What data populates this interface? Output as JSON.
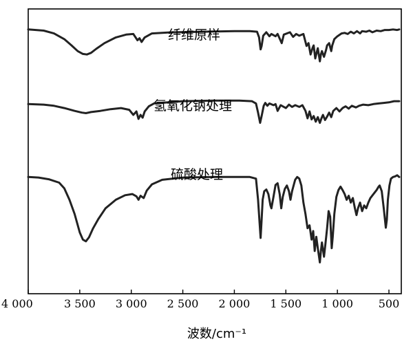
{
  "chart_data": {
    "type": "line",
    "title": "",
    "xlabel": "波数/cm⁻¹",
    "ylabel": "",
    "xlim": [
      4000,
      380
    ],
    "x_reversed": true,
    "xticks": [
      4000,
      3500,
      3000,
      2500,
      2000,
      1500,
      1000,
      500
    ],
    "xtick_labels": [
      "4 000",
      "3 500",
      "3 000",
      "2 500",
      "2 000",
      "1 500",
      "1 000",
      "500"
    ],
    "ylim": [
      0,
      1
    ],
    "series": [
      {
        "name": "纤维原样",
        "points": [
          [
            4000,
            0.928
          ],
          [
            3850,
            0.924
          ],
          [
            3750,
            0.914
          ],
          [
            3650,
            0.894
          ],
          [
            3580,
            0.872
          ],
          [
            3520,
            0.852
          ],
          [
            3470,
            0.842
          ],
          [
            3430,
            0.84
          ],
          [
            3390,
            0.846
          ],
          [
            3340,
            0.86
          ],
          [
            3260,
            0.88
          ],
          [
            3150,
            0.9
          ],
          [
            3050,
            0.91
          ],
          [
            2980,
            0.912
          ],
          [
            2940,
            0.89
          ],
          [
            2920,
            0.897
          ],
          [
            2900,
            0.884
          ],
          [
            2870,
            0.9
          ],
          [
            2800,
            0.914
          ],
          [
            2600,
            0.918
          ],
          [
            2300,
            0.92
          ],
          [
            2000,
            0.922
          ],
          [
            1850,
            0.922
          ],
          [
            1780,
            0.92
          ],
          [
            1760,
            0.9
          ],
          [
            1745,
            0.858
          ],
          [
            1735,
            0.87
          ],
          [
            1720,
            0.906
          ],
          [
            1690,
            0.918
          ],
          [
            1660,
            0.904
          ],
          [
            1640,
            0.912
          ],
          [
            1600,
            0.904
          ],
          [
            1580,
            0.912
          ],
          [
            1540,
            0.88
          ],
          [
            1520,
            0.91
          ],
          [
            1460,
            0.918
          ],
          [
            1430,
            0.902
          ],
          [
            1400,
            0.912
          ],
          [
            1370,
            0.906
          ],
          [
            1330,
            0.912
          ],
          [
            1300,
            0.87
          ],
          [
            1280,
            0.88
          ],
          [
            1260,
            0.84
          ],
          [
            1240,
            0.864
          ],
          [
            1230,
            0.872
          ],
          [
            1215,
            0.826
          ],
          [
            1200,
            0.848
          ],
          [
            1190,
            0.862
          ],
          [
            1170,
            0.816
          ],
          [
            1160,
            0.84
          ],
          [
            1150,
            0.852
          ],
          [
            1130,
            0.832
          ],
          [
            1110,
            0.856
          ],
          [
            1100,
            0.872
          ],
          [
            1080,
            0.88
          ],
          [
            1060,
            0.852
          ],
          [
            1050,
            0.872
          ],
          [
            1030,
            0.894
          ],
          [
            1000,
            0.904
          ],
          [
            960,
            0.914
          ],
          [
            930,
            0.916
          ],
          [
            900,
            0.912
          ],
          [
            870,
            0.92
          ],
          [
            840,
            0.914
          ],
          [
            810,
            0.922
          ],
          [
            780,
            0.914
          ],
          [
            760,
            0.922
          ],
          [
            720,
            0.92
          ],
          [
            690,
            0.924
          ],
          [
            660,
            0.918
          ],
          [
            620,
            0.924
          ],
          [
            580,
            0.922
          ],
          [
            540,
            0.926
          ],
          [
            500,
            0.926
          ],
          [
            460,
            0.928
          ],
          [
            420,
            0.926
          ],
          [
            400,
            0.928
          ]
        ]
      },
      {
        "name": "氢氧化钠处理",
        "points": [
          [
            4000,
            0.666
          ],
          [
            3850,
            0.664
          ],
          [
            3750,
            0.66
          ],
          [
            3650,
            0.652
          ],
          [
            3550,
            0.642
          ],
          [
            3480,
            0.636
          ],
          [
            3440,
            0.634
          ],
          [
            3390,
            0.638
          ],
          [
            3300,
            0.642
          ],
          [
            3200,
            0.648
          ],
          [
            3100,
            0.652
          ],
          [
            3020,
            0.646
          ],
          [
            2980,
            0.628
          ],
          [
            2950,
            0.64
          ],
          [
            2930,
            0.614
          ],
          [
            2910,
            0.628
          ],
          [
            2890,
            0.618
          ],
          [
            2870,
            0.64
          ],
          [
            2830,
            0.658
          ],
          [
            2780,
            0.668
          ],
          [
            2500,
            0.676
          ],
          [
            2200,
            0.678
          ],
          [
            1950,
            0.678
          ],
          [
            1830,
            0.676
          ],
          [
            1790,
            0.668
          ],
          [
            1770,
            0.636
          ],
          [
            1750,
            0.6
          ],
          [
            1735,
            0.624
          ],
          [
            1715,
            0.66
          ],
          [
            1700,
            0.67
          ],
          [
            1680,
            0.66
          ],
          [
            1660,
            0.668
          ],
          [
            1620,
            0.662
          ],
          [
            1600,
            0.666
          ],
          [
            1580,
            0.642
          ],
          [
            1550,
            0.662
          ],
          [
            1500,
            0.652
          ],
          [
            1470,
            0.664
          ],
          [
            1440,
            0.656
          ],
          [
            1410,
            0.662
          ],
          [
            1370,
            0.656
          ],
          [
            1340,
            0.662
          ],
          [
            1310,
            0.642
          ],
          [
            1290,
            0.616
          ],
          [
            1270,
            0.64
          ],
          [
            1250,
            0.612
          ],
          [
            1230,
            0.624
          ],
          [
            1210,
            0.604
          ],
          [
            1190,
            0.62
          ],
          [
            1170,
            0.6
          ],
          [
            1155,
            0.616
          ],
          [
            1140,
            0.628
          ],
          [
            1120,
            0.61
          ],
          [
            1100,
            0.622
          ],
          [
            1080,
            0.636
          ],
          [
            1060,
            0.62
          ],
          [
            1040,
            0.642
          ],
          [
            1010,
            0.652
          ],
          [
            980,
            0.64
          ],
          [
            950,
            0.652
          ],
          [
            920,
            0.658
          ],
          [
            890,
            0.65
          ],
          [
            860,
            0.66
          ],
          [
            820,
            0.654
          ],
          [
            790,
            0.66
          ],
          [
            750,
            0.664
          ],
          [
            700,
            0.662
          ],
          [
            650,
            0.666
          ],
          [
            600,
            0.668
          ],
          [
            550,
            0.67
          ],
          [
            500,
            0.672
          ],
          [
            450,
            0.676
          ],
          [
            400,
            0.676
          ]
        ]
      },
      {
        "name": "硫酸处理",
        "points": [
          [
            4000,
            0.41
          ],
          [
            3900,
            0.408
          ],
          [
            3800,
            0.402
          ],
          [
            3700,
            0.39
          ],
          [
            3650,
            0.37
          ],
          [
            3600,
            0.33
          ],
          [
            3550,
            0.28
          ],
          [
            3500,
            0.215
          ],
          [
            3470,
            0.19
          ],
          [
            3440,
            0.184
          ],
          [
            3410,
            0.198
          ],
          [
            3370,
            0.23
          ],
          [
            3320,
            0.262
          ],
          [
            3250,
            0.3
          ],
          [
            3150,
            0.33
          ],
          [
            3060,
            0.346
          ],
          [
            2990,
            0.35
          ],
          [
            2950,
            0.342
          ],
          [
            2930,
            0.33
          ],
          [
            2910,
            0.344
          ],
          [
            2880,
            0.336
          ],
          [
            2850,
            0.362
          ],
          [
            2800,
            0.384
          ],
          [
            2700,
            0.4
          ],
          [
            2500,
            0.408
          ],
          [
            2200,
            0.41
          ],
          [
            2000,
            0.41
          ],
          [
            1850,
            0.41
          ],
          [
            1790,
            0.404
          ],
          [
            1770,
            0.33
          ],
          [
            1755,
            0.25
          ],
          [
            1745,
            0.196
          ],
          [
            1735,
            0.26
          ],
          [
            1725,
            0.33
          ],
          [
            1710,
            0.36
          ],
          [
            1690,
            0.366
          ],
          [
            1670,
            0.35
          ],
          [
            1650,
            0.31
          ],
          [
            1640,
            0.3
          ],
          [
            1620,
            0.34
          ],
          [
            1600,
            0.382
          ],
          [
            1580,
            0.388
          ],
          [
            1560,
            0.35
          ],
          [
            1545,
            0.3
          ],
          [
            1530,
            0.34
          ],
          [
            1510,
            0.368
          ],
          [
            1490,
            0.38
          ],
          [
            1470,
            0.36
          ],
          [
            1455,
            0.33
          ],
          [
            1440,
            0.36
          ],
          [
            1410,
            0.4
          ],
          [
            1390,
            0.41
          ],
          [
            1370,
            0.404
          ],
          [
            1350,
            0.38
          ],
          [
            1330,
            0.32
          ],
          [
            1310,
            0.28
          ],
          [
            1290,
            0.23
          ],
          [
            1270,
            0.24
          ],
          [
            1250,
            0.19
          ],
          [
            1235,
            0.22
          ],
          [
            1220,
            0.15
          ],
          [
            1205,
            0.2
          ],
          [
            1190,
            0.16
          ],
          [
            1170,
            0.11
          ],
          [
            1160,
            0.15
          ],
          [
            1150,
            0.18
          ],
          [
            1130,
            0.13
          ],
          [
            1115,
            0.18
          ],
          [
            1100,
            0.23
          ],
          [
            1085,
            0.29
          ],
          [
            1070,
            0.27
          ],
          [
            1055,
            0.16
          ],
          [
            1045,
            0.2
          ],
          [
            1030,
            0.28
          ],
          [
            1010,
            0.34
          ],
          [
            990,
            0.364
          ],
          [
            970,
            0.376
          ],
          [
            950,
            0.364
          ],
          [
            930,
            0.35
          ],
          [
            910,
            0.33
          ],
          [
            890,
            0.344
          ],
          [
            870,
            0.32
          ],
          [
            850,
            0.336
          ],
          [
            830,
            0.3
          ],
          [
            815,
            0.276
          ],
          [
            800,
            0.3
          ],
          [
            780,
            0.32
          ],
          [
            760,
            0.29
          ],
          [
            740,
            0.31
          ],
          [
            720,
            0.3
          ],
          [
            700,
            0.32
          ],
          [
            680,
            0.336
          ],
          [
            650,
            0.35
          ],
          [
            620,
            0.364
          ],
          [
            600,
            0.376
          ],
          [
            590,
            0.38
          ],
          [
            570,
            0.36
          ],
          [
            550,
            0.3
          ],
          [
            530,
            0.232
          ],
          [
            520,
            0.26
          ],
          [
            510,
            0.33
          ],
          [
            495,
            0.38
          ],
          [
            480,
            0.404
          ],
          [
            460,
            0.41
          ],
          [
            440,
            0.412
          ],
          [
            420,
            0.416
          ],
          [
            400,
            0.41
          ]
        ]
      }
    ],
    "annotations": [
      {
        "text": "纤维原样",
        "near_series": 0
      },
      {
        "text": "氢氧化钠处理",
        "near_series": 1
      },
      {
        "text": "硫酸处理",
        "near_series": 2
      }
    ],
    "grid": false,
    "legend": "none"
  }
}
